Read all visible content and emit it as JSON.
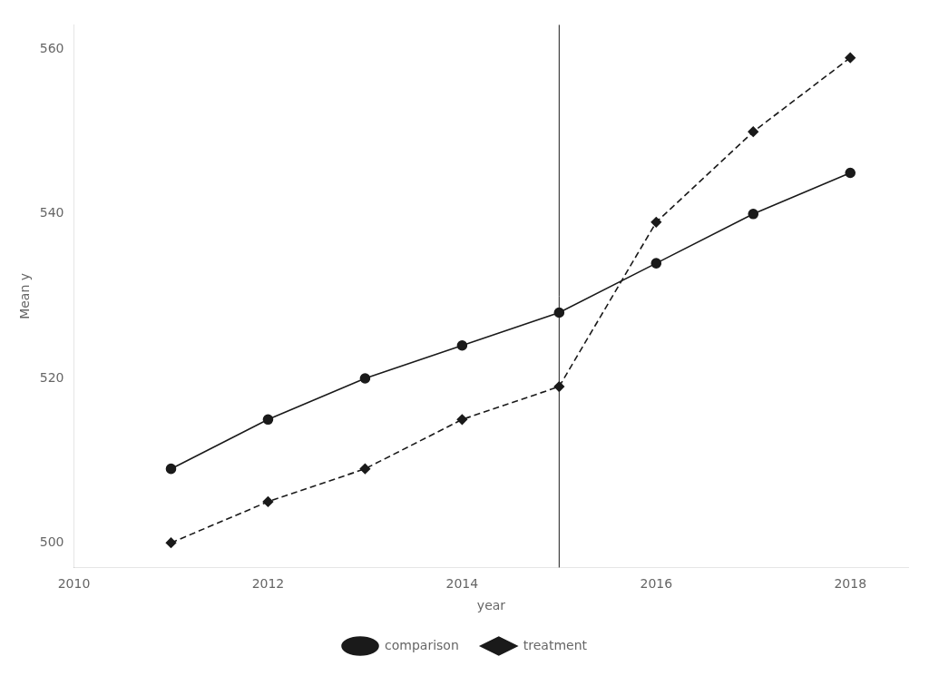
{
  "chart_data": {
    "type": "line",
    "x_label": "year",
    "y_label": "Mean y",
    "x": [
      2011,
      2012,
      2013,
      2014,
      2015,
      2016,
      2017,
      2018
    ],
    "series": [
      {
        "name": "comparison",
        "color": "#1a1a1a",
        "marker": "circle",
        "line_style": "solid",
        "values": [
          509,
          515,
          520,
          524,
          528,
          534,
          540,
          545
        ]
      },
      {
        "name": "treatment",
        "color": "#1a1a1a",
        "marker": "diamond",
        "line_style": "dashed",
        "values": [
          500,
          505,
          509,
          515,
          519,
          539,
          550,
          559
        ]
      }
    ],
    "vlines": [
      {
        "x": 2015,
        "color": "#1a1a1a"
      }
    ],
    "xlim": [
      2010,
      2018.6
    ],
    "ylim": [
      497,
      563
    ],
    "xticks": [
      2010,
      2012,
      2014,
      2016,
      2018
    ],
    "yticks": [
      500,
      520,
      540,
      560
    ],
    "grid": false,
    "legend": "bottom"
  }
}
